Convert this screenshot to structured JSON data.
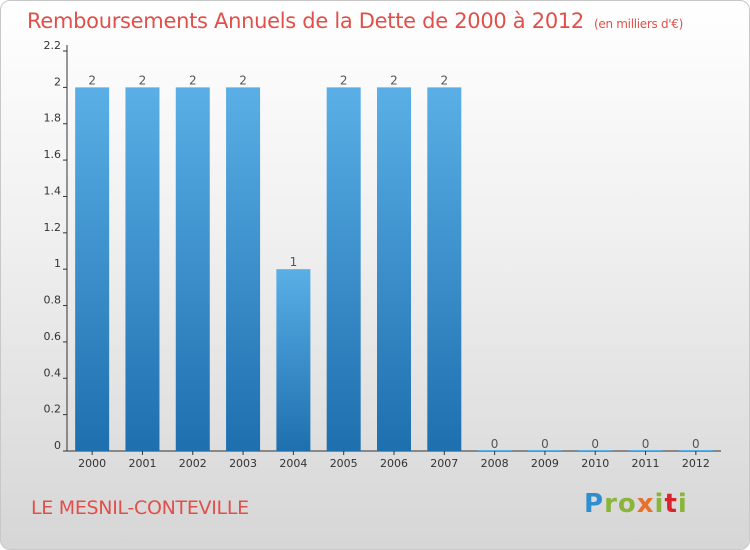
{
  "header": {
    "title": "Remboursements Annuels de la Dette de 2000 à 2012",
    "unit": "(en milliers d'€)"
  },
  "footer": {
    "commune": "LE MESNIL-CONTEVILLE",
    "logo": "Proxiti"
  },
  "colors": {
    "title": "#e0504a",
    "bar_top": "#5aafe6",
    "bar_bottom": "#1d6fae",
    "axis": "#333333"
  },
  "chart_data": {
    "type": "bar",
    "categories": [
      "2000",
      "2001",
      "2002",
      "2003",
      "2004",
      "2005",
      "2006",
      "2007",
      "2008",
      "2009",
      "2010",
      "2011",
      "2012"
    ],
    "values": [
      2,
      2,
      2,
      2,
      1,
      2,
      2,
      2,
      0,
      0,
      0,
      0,
      0
    ],
    "data_labels": [
      "2",
      "2",
      "2",
      "2",
      "1",
      "2",
      "2",
      "2",
      "0",
      "0",
      "0",
      "0",
      "0"
    ],
    "yticks": [
      0,
      0.2,
      0.4,
      0.6,
      0.8,
      1,
      1.2,
      1.4,
      1.6,
      1.8,
      2,
      2.2
    ],
    "ytick_labels": [
      "0",
      "0.2",
      "0.4",
      "0.6",
      "0.8",
      "1",
      "1.2",
      "1.4",
      "1.6",
      "1.8",
      "2",
      "2.2"
    ],
    "ylim": [
      0,
      2.2
    ],
    "grid": false,
    "title": "Remboursements Annuels de la Dette de 2000 à 2012",
    "xlabel": "",
    "ylabel": ""
  }
}
